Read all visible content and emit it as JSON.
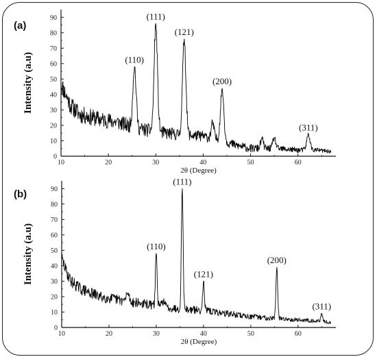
{
  "chart_data": [
    {
      "type": "line",
      "panel_label": "(a)",
      "xlabel": "2θ (Degree)",
      "ylabel": "Intensity (a.u)",
      "xlim": [
        10,
        68
      ],
      "ylim": [
        0,
        95
      ],
      "x_ticks": [
        10,
        20,
        30,
        40,
        50,
        60
      ],
      "y_ticks": [
        0,
        10,
        20,
        30,
        40,
        50,
        60,
        70,
        80,
        90
      ],
      "peaks": [
        {
          "x": 25.5,
          "y": 58,
          "label": "(110)"
        },
        {
          "x": 30.0,
          "y": 86,
          "label": "(111)"
        },
        {
          "x": 36.0,
          "y": 76,
          "label": "(121)"
        },
        {
          "x": 44.0,
          "y": 44,
          "label": "(200)"
        },
        {
          "x": 62.2,
          "y": 14,
          "label": "(311)"
        }
      ],
      "minor_peaks": [
        {
          "x": 42.0,
          "y": 21
        },
        {
          "x": 52.4,
          "y": 11
        },
        {
          "x": 55.0,
          "y": 12
        }
      ],
      "baseline": [
        [
          10,
          47
        ],
        [
          11,
          40
        ],
        [
          12,
          33
        ],
        [
          14,
          27
        ],
        [
          18,
          24
        ],
        [
          22,
          22
        ],
        [
          24,
          20
        ],
        [
          26,
          18
        ],
        [
          28,
          17
        ],
        [
          32,
          15
        ],
        [
          35,
          14
        ],
        [
          40,
          13
        ],
        [
          44,
          10
        ],
        [
          47,
          7
        ],
        [
          50,
          5
        ],
        [
          55,
          5
        ],
        [
          60,
          4
        ],
        [
          64,
          4
        ],
        [
          67,
          3
        ]
      ]
    },
    {
      "type": "line",
      "panel_label": "(b)",
      "xlabel": "2θ (Degree)",
      "ylabel": "Intensity (a.u)",
      "xlim": [
        10,
        68
      ],
      "ylim": [
        0,
        95
      ],
      "x_ticks": [
        10,
        20,
        30,
        40,
        50,
        60
      ],
      "y_ticks": [
        0,
        10,
        20,
        30,
        40,
        50,
        60,
        70,
        80,
        90
      ],
      "peaks": [
        {
          "x": 30.0,
          "y": 48,
          "label": "(110)"
        },
        {
          "x": 35.5,
          "y": 90,
          "label": "(111)"
        },
        {
          "x": 40.0,
          "y": 30,
          "label": "(121)"
        },
        {
          "x": 55.5,
          "y": 39,
          "label": "(200)"
        },
        {
          "x": 65.0,
          "y": 9,
          "label": "(311)"
        }
      ],
      "minor_peaks": [
        {
          "x": 24.0,
          "y": 22
        },
        {
          "x": 31.5,
          "y": 17
        }
      ],
      "baseline": [
        [
          10,
          45
        ],
        [
          11,
          36
        ],
        [
          12,
          30
        ],
        [
          14,
          25
        ],
        [
          18,
          20
        ],
        [
          22,
          18
        ],
        [
          26,
          16
        ],
        [
          30,
          14
        ],
        [
          35,
          12
        ],
        [
          40,
          11
        ],
        [
          45,
          9
        ],
        [
          50,
          7
        ],
        [
          55,
          6
        ],
        [
          60,
          5
        ],
        [
          65,
          4
        ],
        [
          67,
          3
        ]
      ]
    }
  ]
}
